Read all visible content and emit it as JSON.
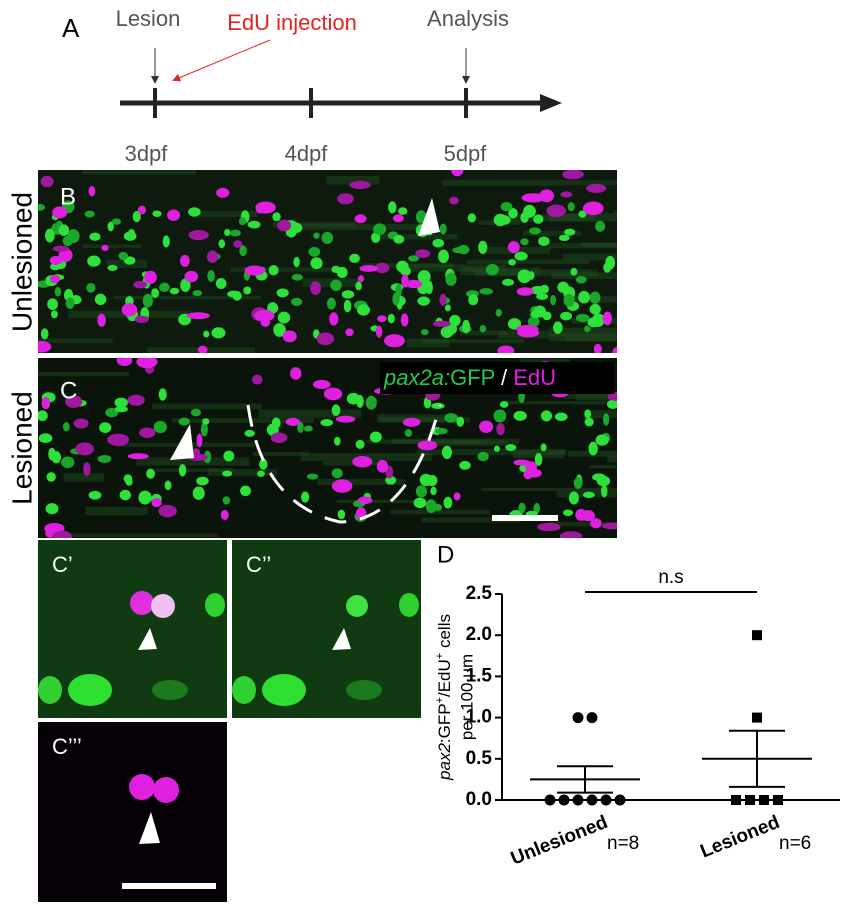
{
  "panel_a": {
    "label": "A",
    "events": [
      "Lesion",
      "EdU injection",
      "Analysis"
    ],
    "ticks": [
      "3dpf",
      "4dpf",
      "5dpf"
    ]
  },
  "panel_b": {
    "label": "B",
    "row_label": "Unlesioned"
  },
  "panel_c": {
    "label": "C",
    "row_label": "Lesioned",
    "legend": {
      "gene": "pax2a:",
      "marker": "GFP",
      "separator": " / ",
      "edu": "EdU"
    }
  },
  "panel_c1": {
    "label": "C’"
  },
  "panel_c2": {
    "label": "C’’"
  },
  "panel_c3": {
    "label": "C’’’"
  },
  "chart_data": {
    "type": "scatter",
    "panel_label": "D",
    "y_label": {
      "gene": "pax2",
      "marker": ":GFP",
      "sup1": "+",
      "edu": "/EdU",
      "sup2": "+",
      "tail": " cells",
      "line2": "per 100 μm"
    },
    "categories": [
      "Unlesioned",
      "Lesioned"
    ],
    "n_labels": [
      "n=8",
      "n=6"
    ],
    "series": [
      {
        "name": "Unlesioned",
        "marker": "circle",
        "color": "#000000",
        "values": [
          0,
          0,
          0,
          0,
          0,
          0,
          1,
          1
        ],
        "mean": 0.25,
        "sem": 0.16
      },
      {
        "name": "Lesioned",
        "marker": "square",
        "color": "#000000",
        "values": [
          0,
          0,
          0,
          0,
          1,
          2
        ],
        "mean": 0.5,
        "sem": 0.34
      }
    ],
    "significance": "n.s",
    "ylim": [
      0,
      2.5
    ],
    "yticks": [
      {
        "value": 0,
        "label": "0.0"
      },
      0.5,
      {
        "value": 1,
        "label": "1.0"
      },
      1.5,
      {
        "value": 2,
        "label": "2.0"
      },
      2.5
    ]
  }
}
